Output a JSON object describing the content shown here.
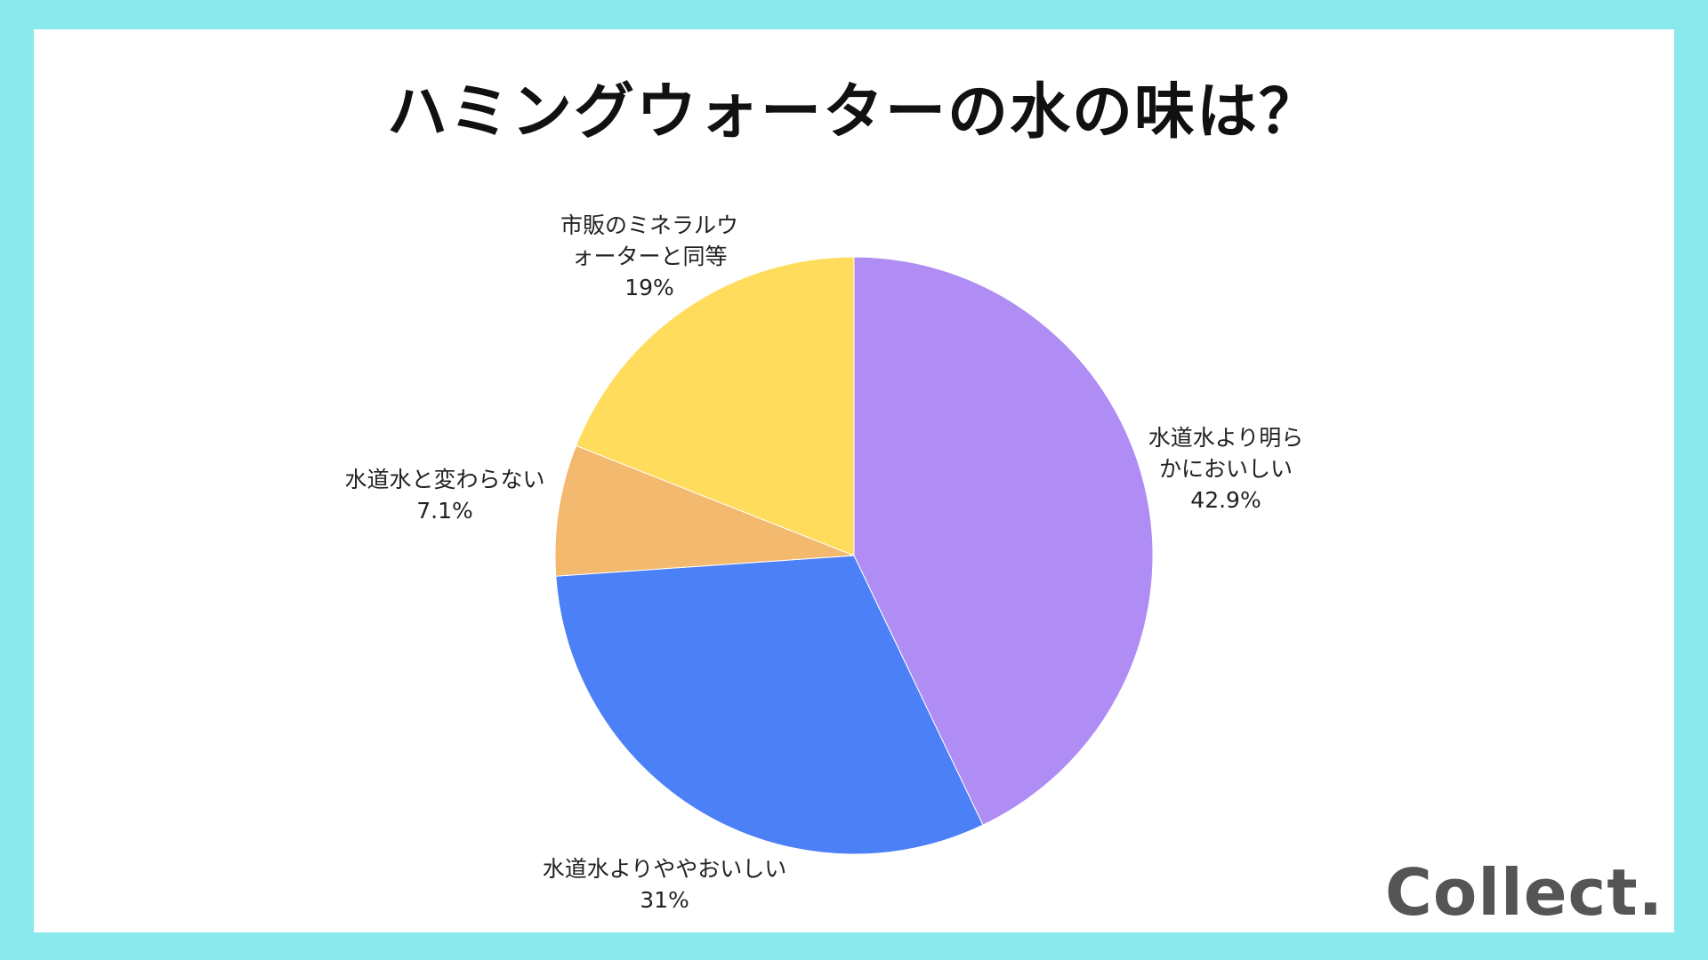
{
  "chart_data": {
    "type": "pie",
    "title": "ハミングウォーターの水の味は？",
    "start_angle_deg": 0,
    "direction": "clockwise",
    "slices": [
      {
        "label_lines": [
          "水道水より明ら",
          "かにおいしい"
        ],
        "value_text": "42.9%",
        "value": 42.9,
        "color": "#af8df4"
      },
      {
        "label_lines": [
          "水道水よりややおいしい"
        ],
        "value_text": "31%",
        "value": 31.0,
        "color": "#4b80f6"
      },
      {
        "label_lines": [
          "水道水と変わらない"
        ],
        "value_text": "7.1%",
        "value": 7.1,
        "color": "#f3b96f"
      },
      {
        "label_lines": [
          "市販のミネラルウ",
          "ォーターと同等"
        ],
        "value_text": "19%",
        "value": 19.0,
        "color": "#ffdc5c"
      }
    ]
  },
  "colors": {
    "border": "#8ae9ec",
    "background": "#ffffff"
  },
  "brand": {
    "logo_text": "Collect."
  }
}
